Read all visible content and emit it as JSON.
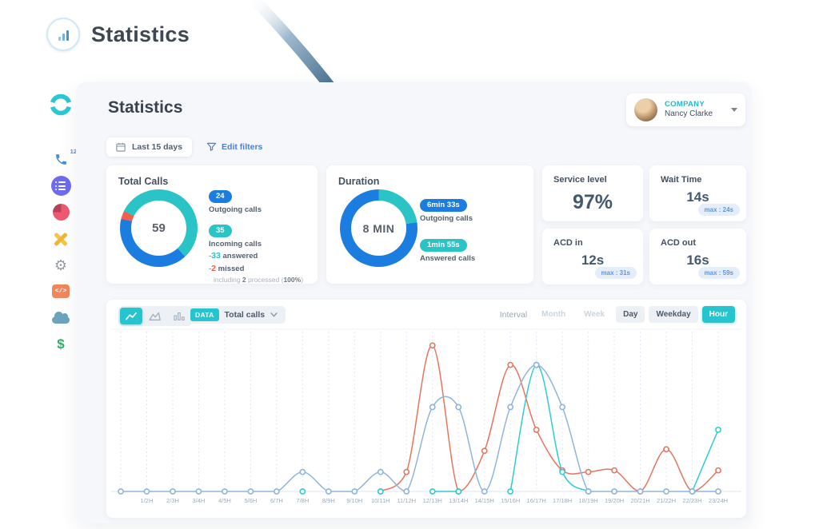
{
  "app": {
    "logo_title": "Statistics"
  },
  "sidebar": {
    "phone_badge": "12",
    "glyphs": {
      "gear": "⚙",
      "code": "</>",
      "dollar": "$"
    }
  },
  "header": {
    "title": "Statistics",
    "company_label": "COMPANY",
    "company_user": "Nancy Clarke"
  },
  "filters": {
    "date_range": "Last 15 days",
    "edit_filters": "Edit filters"
  },
  "total_calls": {
    "title": "Total Calls",
    "center_value": "59",
    "outgoing_badge": "24",
    "outgoing_label": "Outgoing calls",
    "incoming_badge": "35",
    "incoming_label": "Incoming calls",
    "answered_bullet": "-",
    "answered_value": "33",
    "answered_label": " answered",
    "missed_bullet": "-",
    "missed_value": "2",
    "missed_label": " missed",
    "note_pre": "including ",
    "note_count": "2",
    "note_mid": " processed (",
    "note_pct": "100%",
    "note_post": ")",
    "donut": {
      "rotate": -64,
      "segments": [
        {
          "name": "answered",
          "color": "#2ac4c6",
          "value": 33
        },
        {
          "name": "outgoing",
          "color": "#1c7de0",
          "value": 24
        },
        {
          "name": "missed",
          "color": "#f2604d",
          "value": 2
        }
      ]
    }
  },
  "duration": {
    "title": "Duration",
    "center_value": "8 MIN",
    "outgoing_badge": "6min 33s",
    "outgoing_label": "Outgoing calls",
    "answered_badge": "1min 55s",
    "answered_label": "Answered calls",
    "donut": {
      "rotate": 0,
      "segments": [
        {
          "name": "answered",
          "color": "#2ac4c6",
          "value": 115
        },
        {
          "name": "outgoing",
          "color": "#1c7de0",
          "value": 393
        }
      ]
    }
  },
  "kpis": {
    "service_level": {
      "title": "Service level",
      "value": "97%"
    },
    "wait_time": {
      "title": "Wait Time",
      "value": "14s",
      "max": "max : 24s"
    },
    "acd_in": {
      "title": "ACD in",
      "value": "12s",
      "max": "max : 31s"
    },
    "acd_out": {
      "title": "ACD out",
      "value": "16s",
      "max": "max : 59s"
    }
  },
  "chart_toolbar": {
    "data_chip": "DATA",
    "data_value": "Total calls",
    "interval_label": "Interval",
    "intervals": [
      {
        "label": "Month",
        "state": "disabled"
      },
      {
        "label": "Week",
        "state": "disabled"
      },
      {
        "label": "Day",
        "state": "normal"
      },
      {
        "label": "Weekday",
        "state": "normal"
      },
      {
        "label": "Hour",
        "state": "active"
      }
    ]
  },
  "chart_data": {
    "type": "line",
    "title": "Total calls per hour",
    "x_labels": [
      "",
      "1/2H",
      "2/3H",
      "3/4H",
      "4/5H",
      "5/6H",
      "6/7H",
      "7/8H",
      "8/9H",
      "9/10H",
      "10/11H",
      "11/12H",
      "12/13H",
      "13/14H",
      "14/15H",
      "15/16H",
      "16/17H",
      "17/18H",
      "18/19H",
      "19/20H",
      "20/21H",
      "21/22H",
      "22/23H",
      "23/24H"
    ],
    "ylim": [
      0,
      10
    ],
    "grid": true,
    "legend_position": "none",
    "series": [
      {
        "name": "series-red",
        "color": "#e8745e",
        "values": [
          null,
          null,
          null,
          null,
          null,
          null,
          null,
          null,
          null,
          null,
          0,
          1.2,
          9,
          0,
          2.5,
          7.8,
          3.8,
          1.3,
          1.2,
          1.3,
          0,
          2.6,
          0,
          1.3
        ]
      },
      {
        "name": "series-teal",
        "color": "#2bcdd2",
        "values": [
          null,
          null,
          null,
          null,
          null,
          null,
          null,
          0,
          null,
          null,
          0,
          null,
          0,
          0,
          null,
          0,
          7.8,
          1.2,
          0,
          null,
          null,
          null,
          0,
          3.8
        ]
      },
      {
        "name": "series-blue",
        "color": "#8fb4de",
        "values": [
          0,
          0,
          0,
          0,
          0,
          0,
          0,
          1.2,
          0,
          0,
          1.2,
          0,
          5.2,
          5.2,
          0,
          5.2,
          7.8,
          5.2,
          0,
          0,
          0,
          0,
          0,
          0
        ]
      }
    ]
  }
}
